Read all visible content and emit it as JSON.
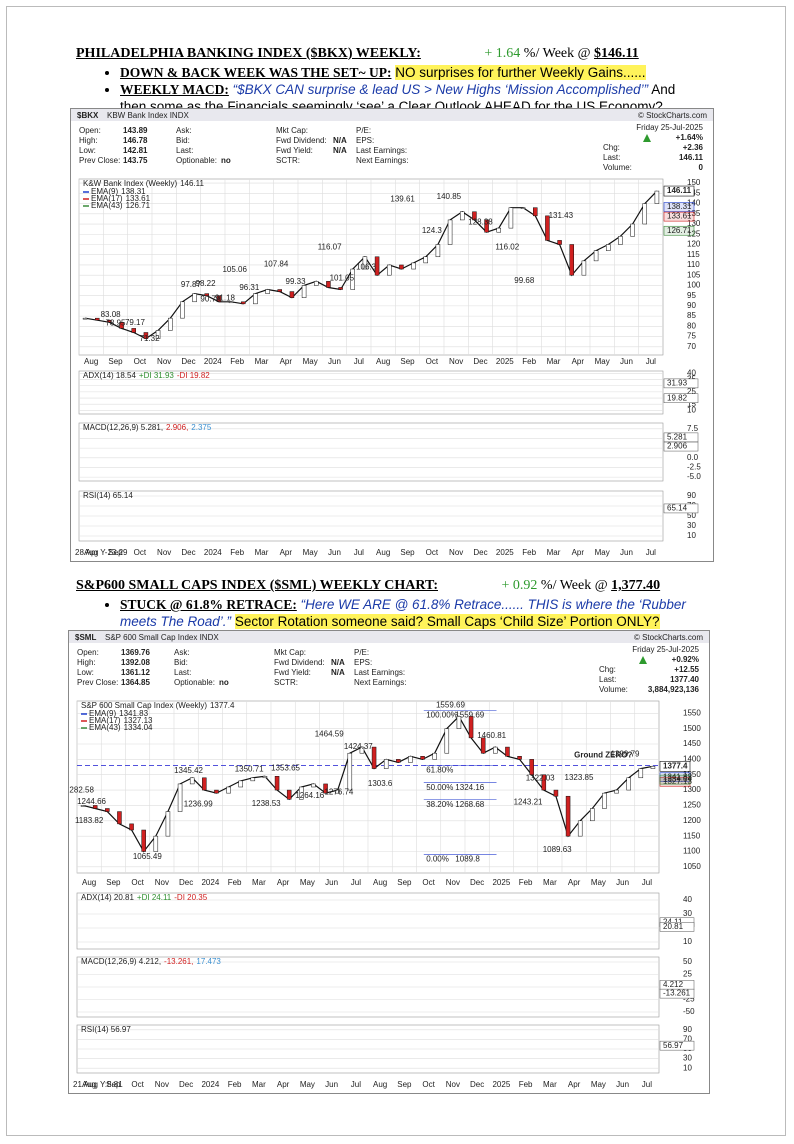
{
  "sections": [
    {
      "title": "PHILADELPHIA BANKING INDEX ($BKX) WEEKLY:",
      "change": "+ 1.64",
      "change_unit": "%/ Week @",
      "price": "$146.11",
      "bullets": [
        {
          "lead": "DOWN & BACK WEEK WAS THE SET~ UP:",
          "text": "NO surprises for further Weekly Gains......"
        },
        {
          "lead": "WEEKLY MACD:",
          "quote": "“$BKX CAN surprise & lead US > New Highs ‘Mission Accomplished’”",
          "text": "And then some as the Financials seemingly ‘see’ a Clear Outlook AHEAD for the US Economy?"
        }
      ],
      "chart": {
        "type": "candlestick",
        "symbol": "$BKX",
        "name": "KBW Bank Index INDX",
        "date": "Friday 25-Jul-2025",
        "source": "© StockCharts.com",
        "info": [
          [
            {
              "label": "Open:",
              "value": "143.89"
            },
            {
              "label": "Ask:"
            },
            {
              "label": "Mkt Cap:"
            },
            {
              "label": "P/E:"
            }
          ],
          [
            {
              "label": "High:",
              "value": "146.78"
            },
            {
              "label": "Bid:"
            },
            {
              "label": "Fwd Dividend:",
              "value": "N/A"
            },
            {
              "label": "EPS:"
            }
          ],
          [
            {
              "label": "Low:",
              "value": "142.81"
            },
            {
              "label": "Last:"
            },
            {
              "label": "Fwd Yield:",
              "value": "N/A"
            },
            {
              "label": "Last Earnings:"
            }
          ],
          [
            {
              "label": "Prev Close:",
              "value": "143.75"
            },
            {
              "label": "Optionable:",
              "value": "no"
            },
            {
              "label": "SCTR:"
            },
            {
              "label": "Next Earnings:"
            }
          ]
        ],
        "quote": [
          {
            "value": "+1.64%"
          },
          {
            "label": "Chg:",
            "value": "+2.36"
          },
          {
            "label": "Last:",
            "value": "146.11"
          },
          {
            "label": "Volume:",
            "value": "0"
          }
        ],
        "series_name": "K&W Bank Index (Weekly)",
        "last": 146.11,
        "emas": [
          {
            "name": "EMA(9)",
            "value": 138.31,
            "color": "#1f3fcf"
          },
          {
            "name": "EMA(17)",
            "value": 133.61,
            "color": "#d02020"
          },
          {
            "name": "EMA(43)",
            "value": 126.71,
            "color": "#3a8a3a"
          }
        ],
        "values": [
          84,
          83,
          82,
          79,
          77,
          74,
          78,
          84,
          92,
          96,
          95,
          92,
          92,
          91,
          96,
          98,
          97,
          94,
          100,
          102,
          99,
          98,
          108,
          114,
          105,
          110,
          108,
          111,
          114,
          120,
          132,
          136,
          132,
          126,
          128,
          138,
          138,
          134,
          122,
          120,
          105,
          112,
          117,
          120,
          124,
          130,
          140,
          146.11
        ],
        "ylim": [
          66,
          152
        ],
        "yticks": [
          70,
          75,
          80,
          85,
          90,
          95,
          100,
          105,
          110,
          115,
          120,
          125,
          130,
          135,
          140,
          145,
          150
        ],
        "annotations": [
          {
            "x": 1.3,
            "value": 83.08
          },
          {
            "x": 1.5,
            "value": 78.95
          },
          {
            "x": 2.3,
            "value": 79.17
          },
          {
            "x": 2.9,
            "value": 71.32
          },
          {
            "x": 4.6,
            "value": 97.87
          },
          {
            "x": 5.2,
            "value": 98.22
          },
          {
            "x": 5.4,
            "value": 90.79
          },
          {
            "x": 6.0,
            "value": 91.18
          },
          {
            "x": 6.4,
            "value": 105.06
          },
          {
            "x": 7.0,
            "value": 96.31
          },
          {
            "x": 8.1,
            "value": 107.84
          },
          {
            "x": 8.9,
            "value": 99.33
          },
          {
            "x": 10.3,
            "value": 116.07
          },
          {
            "x": 10.8,
            "value": 101.05
          },
          {
            "x": 11.8,
            "value": 106.3
          },
          {
            "x": 13.3,
            "value": 139.61
          },
          {
            "x": 14.5,
            "value": 124.3
          },
          {
            "x": 15.2,
            "value": 140.85
          },
          {
            "x": 16.5,
            "value": 128.38
          },
          {
            "x": 17.6,
            "value": 116.02
          },
          {
            "x": 18.3,
            "value": 99.68
          },
          {
            "x": 19.8,
            "value": 131.43
          }
        ],
        "months": [
          "Aug",
          "Sep",
          "Oct",
          "Nov",
          "Dec",
          "2024",
          "Feb",
          "Mar",
          "Apr",
          "May",
          "Jun",
          "Jul",
          "Aug",
          "Sep",
          "Oct",
          "Nov",
          "Dec",
          "2025",
          "Feb",
          "Mar",
          "Apr",
          "May",
          "Jun",
          "Jul"
        ],
        "overlay": "28 Apr Y-23.29",
        "panels": [
          {
            "label": "ADX(14) 18.54",
            "parts": [
              {
                "text": "+DI 31.93",
                "color": "#2f8f2f"
              },
              {
                "text": "-DI 19.82",
                "color": "#d02020"
              }
            ],
            "ylim": [
              7,
              42
            ],
            "yticks": [
              10,
              15,
              20,
              25,
              30,
              35,
              40
            ],
            "tags": [
              31.93,
              19.82
            ]
          },
          {
            "label": "MACD(12,26,9) 5.281,",
            "parts": [
              {
                "text": "2.906,",
                "color": "#d02020"
              },
              {
                "text": "2.375",
                "color": "#3a8fd0"
              }
            ],
            "ylim": [
              -6,
              9
            ],
            "yticks": [
              {
                "value": -5,
                "label": "-5.0"
              },
              -2.5,
              {
                "value": 0,
                "label": "0.0"
              },
              2.5,
              {
                "value": 5,
                "label": "5.0"
              },
              7.5
            ],
            "tags": [
              5.281,
              2.906
            ]
          },
          {
            "label": "RSI(14) 65.14",
            "parts": [],
            "ylim": [
              0,
              100
            ],
            "yticks": [
              10,
              30,
              50,
              70,
              90
            ],
            "tags": [
              65.14
            ]
          }
        ]
      }
    },
    {
      "title": "S&P600 SMALL CAPS INDEX ($SML) WEEKLY CHART:",
      "change": "+ 0.92",
      "change_unit": "%/ Week @",
      "price": "1,377.40",
      "bullets": [
        {
          "lead": "STUCK @ 61.8% RETRACE:",
          "quote": "“Here WE ARE @  61.8% Retrace...... THIS is where the ‘Rubber meets The Road’.”",
          "text": "Sector Rotation someone said? Small Caps ‘Child Size’ Portion ONLY?"
        }
      ],
      "chart": {
        "type": "candlestick",
        "symbol": "$SML",
        "name": "S&P 600 Small Cap Index INDX",
        "date": "Friday 25-Jul-2025",
        "source": "© StockCharts.com",
        "info": [
          [
            {
              "label": "Open:",
              "value": "1369.76"
            },
            {
              "label": "Ask:"
            },
            {
              "label": "Mkt Cap:"
            },
            {
              "label": "P/E:"
            }
          ],
          [
            {
              "label": "High:",
              "value": "1392.08"
            },
            {
              "label": "Bid:"
            },
            {
              "label": "Fwd Dividend:",
              "value": "N/A"
            },
            {
              "label": "EPS:"
            }
          ],
          [
            {
              "label": "Low:",
              "value": "1361.12"
            },
            {
              "label": "Last:"
            },
            {
              "label": "Fwd Yield:",
              "value": "N/A"
            },
            {
              "label": "Last Earnings:"
            }
          ],
          [
            {
              "label": "Prev Close:",
              "value": "1364.85"
            },
            {
              "label": "Optionable:",
              "value": "no"
            },
            {
              "label": "SCTR:"
            },
            {
              "label": "Next Earnings:"
            }
          ]
        ],
        "quote": [
          {
            "value": "+0.92%"
          },
          {
            "label": "Chg:",
            "value": "+12.55"
          },
          {
            "label": "Last:",
            "value": "1377.40"
          },
          {
            "label": "Volume:",
            "value": "3,884,923,136"
          }
        ],
        "series_name": "S&P 600 Small Cap Index (Weekly)",
        "last": 1377.4,
        "emas": [
          {
            "name": "EMA(9)",
            "value": 1341.83,
            "color": "#1f3fcf"
          },
          {
            "name": "EMA(17)",
            "value": 1327.13,
            "color": "#d02020"
          },
          {
            "name": "EMA(43)",
            "value": 1334.04,
            "color": "#3a8a3a"
          }
        ],
        "values": [
          1250,
          1240,
          1230,
          1190,
          1170,
          1100,
          1150,
          1230,
          1320,
          1340,
          1300,
          1290,
          1310,
          1330,
          1340,
          1345,
          1300,
          1270,
          1310,
          1320,
          1290,
          1300,
          1420,
          1440,
          1370,
          1400,
          1390,
          1410,
          1400,
          1420,
          1500,
          1540,
          1470,
          1420,
          1440,
          1410,
          1400,
          1350,
          1300,
          1280,
          1150,
          1200,
          1240,
          1290,
          1300,
          1340,
          1370,
          1377.4
        ],
        "ylim": [
          1030,
          1590
        ],
        "yticks": [
          1050,
          1100,
          1150,
          1200,
          1250,
          1300,
          1350,
          1400,
          1450,
          1500,
          1550
        ],
        "annotations": [
          {
            "x": 0.1,
            "value": 1282.58
          },
          {
            "x": 0.6,
            "value": 1244.66
          },
          {
            "x": 0.5,
            "value": 1183.82
          },
          {
            "x": 2.9,
            "value": 1065.49
          },
          {
            "x": 4.6,
            "value": 1345.42
          },
          {
            "x": 5.0,
            "value": 1236.99
          },
          {
            "x": 7.1,
            "value": 1350.71
          },
          {
            "x": 8.6,
            "value": 1353.65
          },
          {
            "x": 7.8,
            "value": 1238.53
          },
          {
            "x": 9.6,
            "value": 1264.16
          },
          {
            "x": 10.4,
            "value": 1464.59
          },
          {
            "x": 11.6,
            "value": 1424.37
          },
          {
            "x": 10.8,
            "value": 1276.74
          },
          {
            "x": 12.5,
            "value": 1303.6
          },
          {
            "x": 15.4,
            "value": 1559.69
          },
          {
            "x": 17.1,
            "value": 1460.81
          },
          {
            "x": 19.1,
            "value": 1322.03
          },
          {
            "x": 20.7,
            "value": 1323.85
          },
          {
            "x": 18.6,
            "value": 1243.21
          },
          {
            "x": 19.8,
            "value": 1089.63
          },
          {
            "x": 22.6,
            "value": 1399.79
          }
        ],
        "fib": [
          {
            "label": "100.00%",
            "value": 1559.69
          },
          {
            "label": "61.80%"
          },
          {
            "label": "50.00%",
            "value": 1324.16
          },
          {
            "label": "38.20%",
            "value": 1268.68
          },
          {
            "label": "0.00%",
            "value": 1089.8
          }
        ],
        "callout": "Ground ZERO?",
        "months": [
          "Aug",
          "Sep",
          "Oct",
          "Nov",
          "Dec",
          "2024",
          "Feb",
          "Mar",
          "Apr",
          "May",
          "Jun",
          "Jul",
          "Aug",
          "Sep",
          "Oct",
          "Nov",
          "Dec",
          "2025",
          "Feb",
          "Mar",
          "Apr",
          "May",
          "Jun",
          "Jul"
        ],
        "overlay": "21 Aug Y:8.81",
        "panels": [
          {
            "label": "ADX(14) 20.81",
            "parts": [
              {
                "text": "+DI 24.11",
                "color": "#2f8f2f"
              },
              {
                "text": "-DI 20.35",
                "color": "#d02020"
              }
            ],
            "ylim": [
              5,
              45
            ],
            "yticks": [
              10,
              20,
              30,
              40
            ],
            "tags": [
              24.11,
              20.81
            ]
          },
          {
            "label": "MACD(12,26,9) 4.212,",
            "parts": [
              {
                "text": "-13.261,",
                "color": "#d02020"
              },
              {
                "text": "17.473",
                "color": "#3a8fd0"
              }
            ],
            "ylim": [
              -60,
              60
            ],
            "yticks": [
              -50,
              -25,
              0,
              25,
              50
            ],
            "tags": [
              4.212,
              -13.261
            ]
          },
          {
            "label": "RSI(14) 56.97",
            "parts": [],
            "ylim": [
              0,
              100
            ],
            "yticks": [
              10,
              30,
              50,
              70,
              90
            ],
            "tags": [
              56.97
            ]
          }
        ]
      }
    }
  ]
}
